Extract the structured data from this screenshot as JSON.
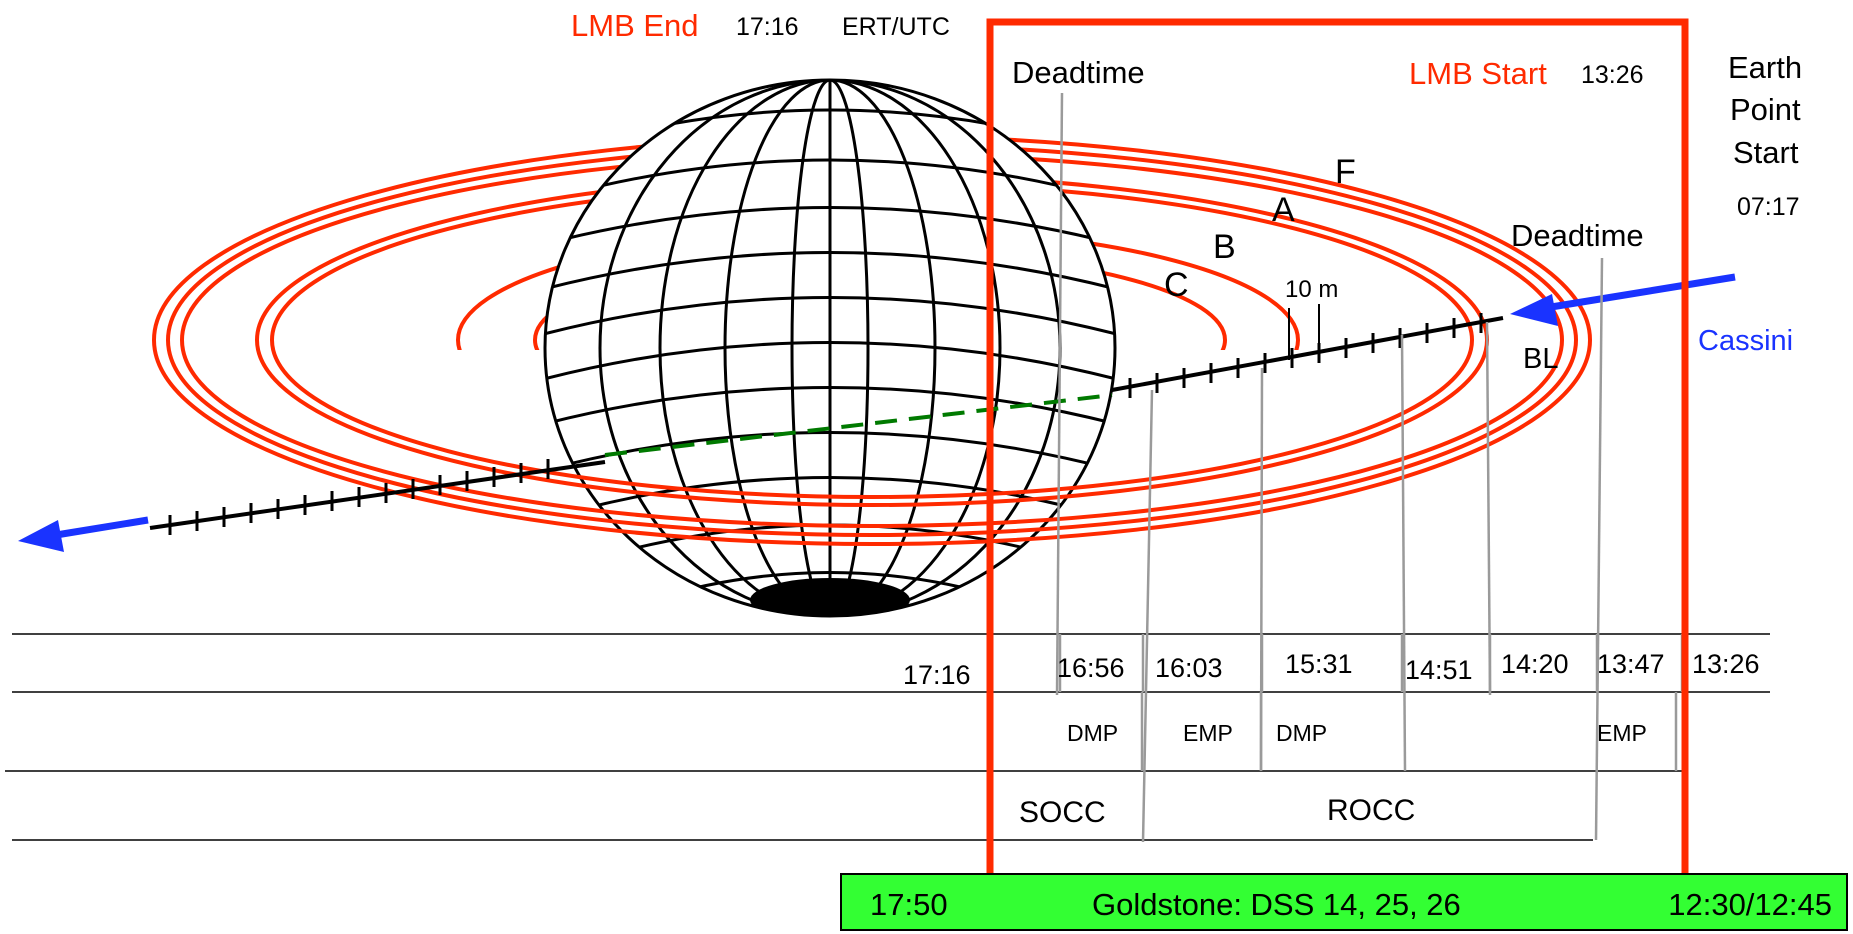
{
  "header": {
    "lmb_end_label": "LMB End",
    "lmb_end_time": "17:16",
    "ert_utc": "ERT/UTC",
    "lmb_start_label": "LMB Start",
    "lmb_start_time": "13:26"
  },
  "earth_point": {
    "line1": "Earth",
    "line2": "Point",
    "line3": "Start",
    "time": "07:17"
  },
  "spacecraft": {
    "label": "Cassini"
  },
  "ring_labels": {
    "f": "F",
    "a": "A",
    "b": "B",
    "c": "C",
    "scale": "10 m",
    "bl": "BL"
  },
  "deadtime_labels": {
    "left": "Deadtime",
    "right": "Deadtime"
  },
  "timeline": {
    "times": [
      "17:16",
      "16:56",
      "16:03",
      "15:31",
      "14:51",
      "14:20",
      "13:47",
      "13:26"
    ],
    "modes": [
      "DMP",
      "EMP",
      "DMP",
      "EMP"
    ],
    "phases": [
      "SOCC",
      "ROCC"
    ]
  },
  "station": {
    "start": "17:50",
    "name": "Goldstone: DSS 14, 25, 26",
    "end": "12:30/12:45"
  },
  "colors": {
    "rings": "#ff2a00",
    "lmb_box": "#ff2a00",
    "trajectory_arrow": "#1a33ff",
    "occulted_path": "#007a00",
    "station_bar": "#33ff33",
    "gridlines": "#000000",
    "leader_lines": "#9a9a9a"
  }
}
